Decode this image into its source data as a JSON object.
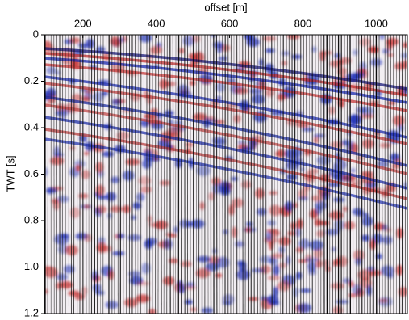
{
  "chart_data": {
    "type": "seismic",
    "xlabel": "offset [m]",
    "ylabel": "TWT [s]",
    "xlim": [
      95,
      1085
    ],
    "xticks": [
      200,
      400,
      600,
      800,
      1000
    ],
    "ylim": [
      0,
      1.2
    ],
    "yticks": [
      0,
      0.2,
      0.4,
      0.6,
      0.8,
      {
        "value": 1,
        "label": "1.0"
      },
      1.2
    ]
  }
}
